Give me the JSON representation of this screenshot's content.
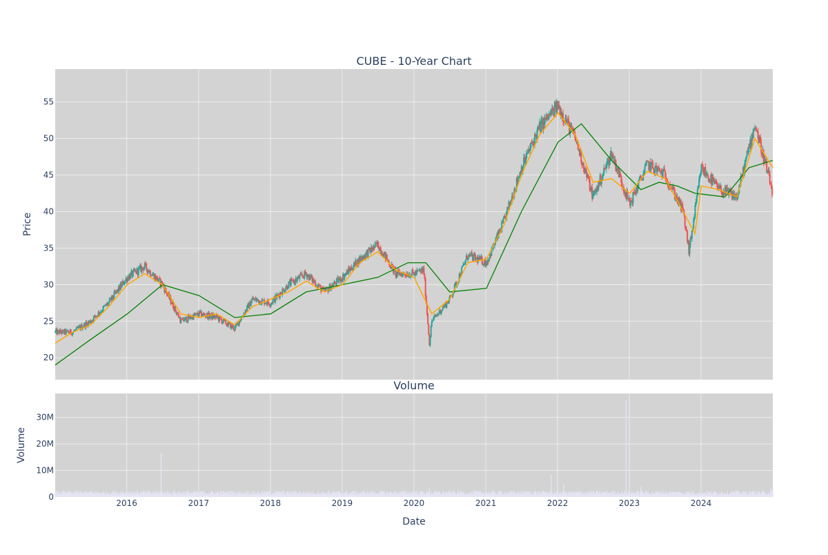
{
  "colors": {
    "plot_background": "#d3d3d3",
    "grid": "#ececec",
    "text": "#2a3f5f",
    "candle_up": "#26a69a",
    "candle_down": "#ef5350",
    "ma_short": "#ffa500",
    "ma_long": "#008000",
    "volume_bar": "#e4e4f4"
  },
  "chart_data": [
    {
      "type": "candlestick",
      "title": "CUBE - 10-Year Chart",
      "ylabel": "Price",
      "xlabel": "",
      "ylim": [
        17,
        59.5
      ],
      "xlim": [
        "2015-01-02",
        "2024-12-31"
      ],
      "yticks": [
        20,
        25,
        30,
        35,
        40,
        45,
        50,
        55
      ],
      "grid": true,
      "legend": "none",
      "series": [
        {
          "type": "candlestick",
          "x": [
            "2015-01-02",
            "2015-04-01",
            "2015-07-01",
            "2015-10-01",
            "2016-01-04",
            "2016-04-01",
            "2016-07-01",
            "2016-10-03",
            "2017-01-03",
            "2017-04-03",
            "2017-07-03",
            "2017-10-02",
            "2018-01-02",
            "2018-04-02",
            "2018-07-02",
            "2018-10-01",
            "2019-01-02",
            "2019-04-01",
            "2019-07-01",
            "2019-10-01",
            "2020-01-02",
            "2020-02-20",
            "2020-03-20",
            "2020-04-01",
            "2020-07-01",
            "2020-10-01",
            "2021-01-04",
            "2021-04-01",
            "2021-07-01",
            "2021-10-01",
            "2022-01-03",
            "2022-04-01",
            "2022-07-01",
            "2022-10-03",
            "2023-01-03",
            "2023-04-03",
            "2023-07-03",
            "2023-10-02",
            "2023-11-01",
            "2024-01-02",
            "2024-04-01",
            "2024-07-01",
            "2024-10-01",
            "2024-12-31"
          ],
          "close": [
            23.5,
            23.5,
            25.0,
            27.5,
            31.0,
            32.5,
            30.0,
            25.0,
            26.0,
            25.5,
            24.0,
            28.0,
            27.5,
            30.0,
            31.5,
            29.0,
            31.0,
            33.5,
            35.5,
            31.5,
            31.5,
            32.0,
            22.0,
            25.0,
            28.0,
            34.0,
            33.0,
            38.5,
            46.0,
            51.5,
            54.5,
            50.0,
            42.0,
            48.0,
            41.0,
            46.5,
            45.0,
            40.0,
            34.5,
            46.0,
            43.0,
            42.0,
            52.0,
            42.5
          ]
        },
        {
          "type": "line",
          "x": [
            "2015-01-02",
            "2015-04-01",
            "2015-07-01",
            "2015-10-01",
            "2016-01-04",
            "2016-04-01",
            "2016-07-01",
            "2016-10-03",
            "2017-01-03",
            "2017-04-03",
            "2017-07-03",
            "2017-10-02",
            "2018-01-02",
            "2018-04-02",
            "2018-07-02",
            "2018-10-01",
            "2019-01-02",
            "2019-04-01",
            "2019-07-01",
            "2019-10-01",
            "2020-01-02",
            "2020-04-01",
            "2020-07-01",
            "2020-10-01",
            "2021-01-04",
            "2021-04-01",
            "2021-07-01",
            "2021-10-01",
            "2022-01-03",
            "2022-04-01",
            "2022-07-01",
            "2022-10-03",
            "2023-01-03",
            "2023-04-03",
            "2023-07-03",
            "2023-10-02",
            "2023-12-01",
            "2024-01-02",
            "2024-04-01",
            "2024-07-01",
            "2024-10-01",
            "2024-12-31"
          ],
          "values": [
            22.0,
            23.5,
            24.5,
            27.0,
            30.0,
            31.5,
            30.0,
            26.0,
            25.5,
            26.0,
            24.5,
            27.0,
            28.0,
            29.0,
            30.5,
            29.0,
            30.0,
            33.0,
            34.5,
            32.0,
            31.0,
            26.0,
            28.0,
            33.0,
            33.5,
            38.0,
            45.0,
            50.5,
            53.5,
            50.5,
            44.0,
            44.5,
            42.5,
            45.5,
            44.5,
            40.0,
            37.0,
            43.5,
            43.0,
            42.0,
            50.0,
            46.0
          ]
        },
        {
          "type": "line",
          "x": [
            "2015-01-02",
            "2015-07-01",
            "2016-01-04",
            "2016-07-01",
            "2017-01-03",
            "2017-07-03",
            "2018-01-02",
            "2018-07-02",
            "2019-01-02",
            "2019-07-01",
            "2019-12-02",
            "2020-03-02",
            "2020-07-01",
            "2021-01-04",
            "2021-07-01",
            "2022-01-03",
            "2022-05-02",
            "2022-10-03",
            "2023-03-01",
            "2023-06-01",
            "2023-09-01",
            "2023-12-01",
            "2024-05-01",
            "2024-09-01",
            "2024-12-31"
          ],
          "values": [
            19.0,
            22.5,
            26.0,
            30.0,
            28.5,
            25.5,
            26.0,
            29.0,
            30.0,
            31.0,
            33.0,
            33.0,
            29.0,
            29.5,
            40.0,
            49.5,
            52.0,
            47.0,
            43.0,
            44.0,
            43.5,
            42.5,
            42.0,
            46.0,
            47.0
          ]
        }
      ]
    },
    {
      "type": "bar",
      "title": "Volume",
      "ylabel": "Volume",
      "xlabel": "Date",
      "ylim": [
        0,
        39000000
      ],
      "yticks": [
        0,
        10000000,
        20000000,
        30000000
      ],
      "ytick_labels": [
        "0",
        "10M",
        "20M",
        "30M"
      ],
      "xtick_labels": [
        "2016",
        "2017",
        "2018",
        "2019",
        "2020",
        "2021",
        "2022",
        "2023",
        "2024"
      ],
      "xtick_dates": [
        "2016-01-01",
        "2017-01-01",
        "2018-01-01",
        "2019-01-01",
        "2020-01-01",
        "2021-01-01",
        "2022-01-01",
        "2023-01-01",
        "2024-01-01"
      ],
      "grid": true,
      "x": [
        "2015-06-01",
        "2016-06-24",
        "2017-06-01",
        "2018-06-01",
        "2019-06-01",
        "2020-03-20",
        "2020-09-01",
        "2021-06-01",
        "2021-11-30",
        "2022-02-01",
        "2022-09-01",
        "2022-12-16",
        "2023-03-01",
        "2023-09-01",
        "2024-06-01",
        "2024-12-20"
      ],
      "values": [
        1800000,
        16500000,
        2000000,
        1600000,
        1500000,
        3500000,
        1400000,
        1300000,
        8500000,
        5000000,
        1800000,
        36500000,
        3800000,
        2000000,
        1800000,
        3500000
      ]
    }
  ]
}
